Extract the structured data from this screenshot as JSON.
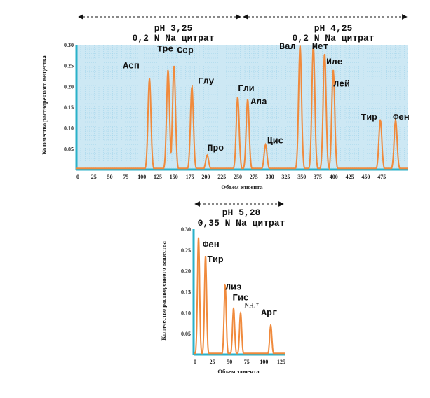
{
  "chart_data": [
    {
      "type": "line",
      "xlabel": "Объем элюента",
      "ylabel": "Количество растворенного вещества",
      "xlim": [
        0,
        500
      ],
      "ylim": [
        0,
        0.3
      ],
      "x_ticks": [
        "0",
        "25",
        "50",
        "75",
        "100",
        "125",
        "150",
        "175",
        "200",
        "225",
        "250",
        "275",
        "300",
        "325",
        "350",
        "375",
        "400",
        "425",
        "450",
        "475"
      ],
      "y_ticks": [
        "0.05",
        "0.10",
        "0.15",
        "0.20",
        "0.25",
        "0.30"
      ],
      "grid": true,
      "colors": {
        "line": "#f08a3c",
        "plot_bg": "#cde8f4",
        "grid": "#9fd3ea",
        "axis": "#2ab1c9"
      },
      "conditions": [
        {
          "ph": "pH 3,25",
          "buffer": "0,2 N Na цитрат",
          "x_range": [
            0,
            250
          ]
        },
        {
          "ph": "pH 4,25",
          "buffer": "0,2 N Na цитрат",
          "x_range": [
            250,
            500
          ]
        }
      ],
      "peaks": [
        {
          "label": "Асп",
          "x": 110,
          "y": 0.22
        },
        {
          "label": "Тре",
          "x": 138,
          "y": 0.24
        },
        {
          "label": "Сер",
          "x": 147,
          "y": 0.25
        },
        {
          "label": "Глу",
          "x": 174,
          "y": 0.2
        },
        {
          "label": "Про",
          "x": 197,
          "y": 0.035
        },
        {
          "label": "Гли",
          "x": 243,
          "y": 0.175
        },
        {
          "label": "Ала",
          "x": 258,
          "y": 0.17
        },
        {
          "label": "Цис",
          "x": 285,
          "y": 0.06
        },
        {
          "label": "Вал",
          "x": 337,
          "y": 0.3
        },
        {
          "label": "Мет",
          "x": 357,
          "y": 0.3
        },
        {
          "label": "Иле",
          "x": 374,
          "y": 0.28
        },
        {
          "label": "Лей",
          "x": 387,
          "y": 0.24
        },
        {
          "label": "Тир",
          "x": 458,
          "y": 0.12
        },
        {
          "label": "Фен",
          "x": 481,
          "y": 0.12
        }
      ]
    },
    {
      "type": "line",
      "xlabel": "Объем элюента",
      "ylabel": "Количество растворенного вещества",
      "xlim": [
        0,
        130
      ],
      "ylim": [
        0,
        0.3
      ],
      "x_ticks": [
        "0",
        "25",
        "50",
        "75",
        "100",
        "125"
      ],
      "y_ticks": [
        "0.05",
        "0.10",
        "0.15",
        "0.20",
        "0.25",
        "0.30"
      ],
      "grid": false,
      "colors": {
        "line": "#f08a3c",
        "plot_bg": "#ffffff",
        "axis": "#2ab1c9"
      },
      "conditions": [
        {
          "ph": "pH 5,28",
          "buffer": "0,35 N Na цитрат",
          "x_range": [
            0,
            125
          ]
        }
      ],
      "peaks": [
        {
          "label": "Фен",
          "x": 7,
          "y": 0.28
        },
        {
          "label": "Тир",
          "x": 17,
          "y": 0.235
        },
        {
          "label": "Лиз",
          "x": 45,
          "y": 0.165
        },
        {
          "label": "Гис",
          "x": 57,
          "y": 0.11
        },
        {
          "label": "NH₄⁺",
          "x": 67,
          "y": 0.1
        },
        {
          "label": "Арг",
          "x": 110,
          "y": 0.07
        }
      ]
    }
  ]
}
